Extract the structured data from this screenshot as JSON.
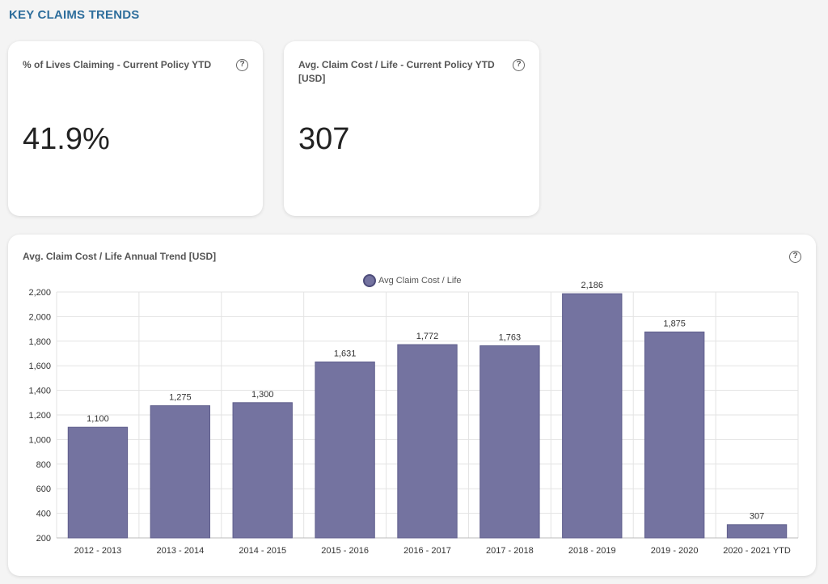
{
  "header": {
    "title": "KEY CLAIMS TRENDS"
  },
  "kpis": [
    {
      "label": "% of Lives Claiming - Current Policy YTD",
      "value": "41.9%",
      "help_icon": "question-circle-icon"
    },
    {
      "label": "Avg. Claim Cost / Life - Current Policy YTD [USD]",
      "value": "307",
      "help_icon": "question-circle-icon"
    }
  ],
  "chart_card": {
    "title": "Avg. Claim Cost / Life Annual Trend [USD]",
    "help_icon": "question-circle-icon"
  },
  "chart_data": {
    "type": "bar",
    "categories": [
      "2012 - 2013",
      "2013 - 2014",
      "2014 - 2015",
      "2015 - 2016",
      "2016 - 2017",
      "2017 - 2018",
      "2018 - 2019",
      "2019 - 2020",
      "2020 - 2021 YTD"
    ],
    "series": [
      {
        "name": "Avg Claim Cost / Life",
        "values": [
          1100,
          1275,
          1300,
          1631,
          1772,
          1763,
          2186,
          1875,
          307
        ],
        "color": "#7473a0"
      }
    ],
    "value_labels": [
      "1,100",
      "1,275",
      "1,300",
      "1,631",
      "1,772",
      "1,763",
      "2,186",
      "1,875",
      "307"
    ],
    "y_ticks": [
      200,
      400,
      600,
      800,
      1000,
      1200,
      1400,
      1600,
      1800,
      2000,
      2200
    ],
    "y_tick_labels": [
      "200",
      "400",
      "600",
      "800",
      "1,000",
      "1,200",
      "1,400",
      "1,600",
      "1,800",
      "2,000",
      "2,200"
    ],
    "ylim": [
      200,
      2200
    ],
    "grid": true,
    "legend_position": "top-center",
    "xlabel": "",
    "ylabel": ""
  }
}
